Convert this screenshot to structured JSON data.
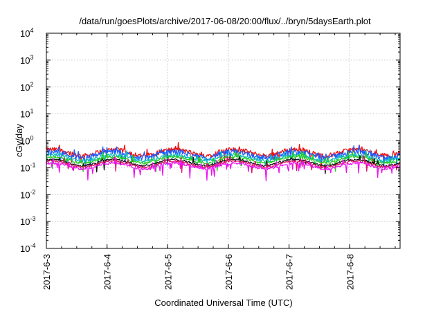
{
  "chart_data": {
    "type": "line",
    "title": "/data/run/goesPlots/archive/2017-06-08/20:00/flux/../bryn/5daysEarth.plot",
    "xlabel": "Coordinated Universal Time (UTC)",
    "ylabel": "cGy/day",
    "x_range_days": [
      0,
      5.83
    ],
    "ylim": [
      0.0001,
      10000
    ],
    "yscale": "log",
    "grid": true,
    "legend": "none",
    "x_ticks": [
      {
        "day": 0,
        "label": "2017-6-3"
      },
      {
        "day": 1,
        "label": "2017-6-4"
      },
      {
        "day": 2,
        "label": "2017-6-5"
      },
      {
        "day": 3,
        "label": "2017-6-6"
      },
      {
        "day": 4,
        "label": "2017-6-7"
      },
      {
        "day": 5,
        "label": "2017-6-8"
      }
    ],
    "y_ticks": [
      {
        "exp": -4,
        "base": "10",
        "sup": "-4"
      },
      {
        "exp": -3,
        "base": "10",
        "sup": "-3"
      },
      {
        "exp": -2,
        "base": "10",
        "sup": "-2"
      },
      {
        "exp": -1,
        "base": "10",
        "sup": "-1"
      },
      {
        "exp": 0,
        "base": "10",
        "sup": "0"
      },
      {
        "exp": 1,
        "base": "10",
        "sup": "1"
      },
      {
        "exp": 2,
        "base": "10",
        "sup": "2"
      },
      {
        "exp": 3,
        "base": "10",
        "sup": "3"
      },
      {
        "exp": 4,
        "base": "10",
        "sup": "4"
      }
    ],
    "series": [
      {
        "color": "#ee1111",
        "level": 0.38,
        "spread": 0.2,
        "dips": 0.12
      },
      {
        "color": "#1a5cff",
        "level": 0.32,
        "spread": 0.22,
        "dips": 0.18
      },
      {
        "color": "#11bbbb",
        "level": 0.24,
        "spread": 0.14,
        "dips": 0.1
      },
      {
        "color": "#22cc22",
        "level": 0.2,
        "spread": 0.1,
        "dips": 0.08
      },
      {
        "color": "#111111",
        "level": 0.16,
        "spread": 0.08,
        "dips": 0.06
      },
      {
        "color": "#dd1166",
        "level": 0.14,
        "spread": 0.08,
        "dips": 0.06
      },
      {
        "color": "#ee11ee",
        "level": 0.12,
        "spread": 0.1,
        "dips": 0.3
      }
    ]
  }
}
